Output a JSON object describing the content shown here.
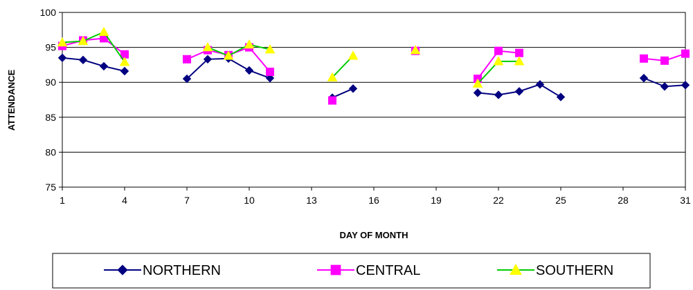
{
  "chart_data": {
    "type": "line",
    "title": "",
    "xlabel": "DAY OF MONTH",
    "ylabel": "ATTENDANCE",
    "xlim": [
      1,
      31
    ],
    "ylim": [
      75,
      100
    ],
    "x_ticks": [
      1,
      4,
      7,
      10,
      13,
      16,
      19,
      22,
      25,
      28,
      31
    ],
    "y_ticks": [
      75,
      80,
      85,
      90,
      95,
      100
    ],
    "grid": "horizontal",
    "legend_position": "bottom",
    "series": [
      {
        "name": "NORTHERN",
        "color": "#000080",
        "marker": "diamond",
        "segments": [
          [
            [
              1,
              93.5
            ],
            [
              2,
              93.2
            ],
            [
              3,
              92.3
            ],
            [
              4,
              91.6
            ]
          ],
          [
            [
              7,
              90.5
            ],
            [
              8,
              93.3
            ],
            [
              9,
              93.4
            ],
            [
              10,
              91.7
            ],
            [
              11,
              90.6
            ]
          ],
          [
            [
              14,
              87.8
            ],
            [
              15,
              89.1
            ]
          ],
          [
            [
              21,
              88.5
            ],
            [
              22,
              88.2
            ],
            [
              23,
              88.7
            ],
            [
              24,
              89.7
            ],
            [
              25,
              87.9
            ]
          ],
          [
            [
              29,
              90.6
            ],
            [
              30,
              89.4
            ],
            [
              31,
              89.6
            ]
          ]
        ]
      },
      {
        "name": "CENTRAL",
        "color": "#FF00FF",
        "marker": "square",
        "segments": [
          [
            [
              1,
              95.2
            ],
            [
              2,
              96.0
            ],
            [
              3,
              96.3
            ],
            [
              4,
              94.0
            ]
          ],
          [
            [
              7,
              93.3
            ],
            [
              8,
              94.6
            ],
            [
              9,
              93.9
            ],
            [
              10,
              95.0
            ],
            [
              11,
              91.5
            ]
          ],
          [
            [
              14,
              87.4
            ]
          ],
          [
            [
              18,
              94.5
            ]
          ],
          [
            [
              21,
              90.5
            ],
            [
              22,
              94.5
            ],
            [
              23,
              94.2
            ]
          ],
          [
            [
              29,
              93.4
            ],
            [
              30,
              93.1
            ],
            [
              31,
              94.1
            ]
          ]
        ]
      },
      {
        "name": "SOUTHERN",
        "color": "#00CC00",
        "marker": "triangle",
        "marker_color": "#FFFF00",
        "segments": [
          [
            [
              1,
              95.7
            ],
            [
              2,
              95.9
            ],
            [
              3,
              97.2
            ],
            [
              4,
              92.9
            ]
          ],
          [
            [
              8,
              95.0
            ],
            [
              9,
              93.8
            ],
            [
              10,
              95.4
            ],
            [
              11,
              94.7
            ]
          ],
          [
            [
              14,
              90.7
            ],
            [
              15,
              93.8
            ]
          ],
          [
            [
              18,
              94.6
            ]
          ],
          [
            [
              21,
              89.8
            ],
            [
              22,
              93.0
            ],
            [
              23,
              93.0
            ]
          ]
        ]
      }
    ]
  }
}
